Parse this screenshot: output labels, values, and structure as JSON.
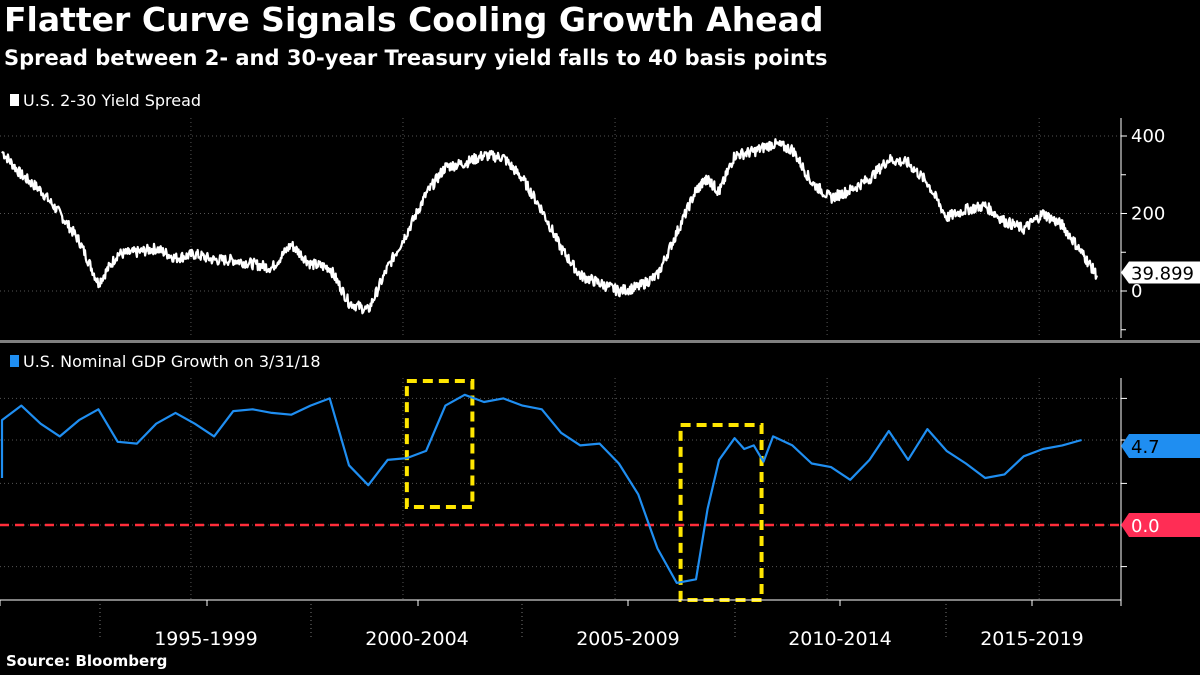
{
  "header": {
    "title": "Flatter Curve Signals Cooling Growth Ahead",
    "subtitle": "Spread between 2- and 30-year Treasury yield falls to 40 basis points"
  },
  "footer": {
    "source": "Source: Bloomberg"
  },
  "colors": {
    "background": "#000000",
    "spread_line": "#ffffff",
    "gdp_line": "#1f8ef1",
    "zero_line": "#ff2d3a",
    "highlight_box": "#ffe600",
    "gdp_tag": "#1f8ef1",
    "zero_tag": "#ff2d55"
  },
  "chart_data": [
    {
      "type": "line",
      "legend": "U.S. 2-30 Yield Spread",
      "x_unit": "year",
      "y_axis": {
        "ticks": [
          400,
          200,
          0
        ],
        "tick_labels": [
          "400",
          "200",
          "0"
        ],
        "ylim": [
          -120,
          440
        ],
        "side": "right"
      },
      "last_value_label": "39.899",
      "series": [
        {
          "name": "U.S. 2-30 Yield Spread",
          "x": [
            1990.0,
            1990.5,
            1991.0,
            1991.5,
            1992.0,
            1992.5,
            1993.0,
            1993.5,
            1994.0,
            1994.5,
            1995.0,
            1995.5,
            1996.0,
            1996.5,
            1997.0,
            1997.5,
            1998.0,
            1998.5,
            1999.0,
            1999.5,
            2000.0,
            2000.5,
            2001.0,
            2001.5,
            2002.0,
            2002.5,
            2003.0,
            2003.5,
            2004.0,
            2004.5,
            2005.0,
            2005.5,
            2006.0,
            2006.5,
            2007.0,
            2007.5,
            2008.0,
            2008.3,
            2008.6,
            2009.0,
            2009.5,
            2010.0,
            2010.5,
            2011.0,
            2011.5,
            2012.0,
            2012.5,
            2013.0,
            2013.5,
            2014.0,
            2014.5,
            2015.0,
            2015.5,
            2016.0,
            2016.5,
            2017.0,
            2017.5,
            2018.0,
            2018.4
          ],
          "y": [
            360,
            300,
            260,
            200,
            130,
            20,
            95,
            100,
            110,
            85,
            95,
            80,
            80,
            70,
            60,
            120,
            70,
            60,
            -30,
            -50,
            60,
            150,
            250,
            320,
            330,
            350,
            345,
            290,
            210,
            110,
            40,
            20,
            0,
            10,
            40,
            150,
            260,
            290,
            255,
            350,
            360,
            380,
            365,
            280,
            240,
            260,
            290,
            340,
            330,
            280,
            190,
            210,
            220,
            180,
            160,
            200,
            170,
            100,
            40
          ]
        }
      ]
    },
    {
      "type": "line",
      "legend": "U.S. Nominal GDP Growth on 3/31/18",
      "x_unit": "year",
      "last_value_label": "4.7",
      "reference_line": {
        "value": 0.0,
        "label": "0.0",
        "style": "dashed"
      },
      "highlights": [
        {
          "from": 2000.5,
          "to": 2002.2
        },
        {
          "from": 2007.6,
          "to": 2009.7
        }
      ],
      "series": [
        {
          "name": "U.S. Nominal GDP Growth",
          "x": [
            1990.0,
            1990.5,
            1991.0,
            1991.5,
            1992.0,
            1992.5,
            1993.0,
            1993.5,
            1994.0,
            1994.5,
            1995.0,
            1995.5,
            1996.0,
            1996.5,
            1997.0,
            1997.5,
            1998.0,
            1998.5,
            1999.0,
            1999.5,
            2000.0,
            2000.5,
            2001.0,
            2001.5,
            2002.0,
            2002.5,
            2003.0,
            2003.5,
            2004.0,
            2004.5,
            2005.0,
            2005.5,
            2006.0,
            2006.5,
            2007.0,
            2007.5,
            2008.0,
            2008.3,
            2008.6,
            2009.0,
            2009.25,
            2009.5,
            2009.75,
            2010.0,
            2010.5,
            2011.0,
            2011.5,
            2012.0,
            2012.5,
            2013.0,
            2013.5,
            2014.0,
            2014.5,
            2015.0,
            2015.5,
            2016.0,
            2016.5,
            2017.0,
            2017.5,
            2018.0
          ],
          "y": [
            5.8,
            6.6,
            5.6,
            4.9,
            5.8,
            6.4,
            4.6,
            4.5,
            5.6,
            6.2,
            5.6,
            4.9,
            6.3,
            6.4,
            6.2,
            6.1,
            6.6,
            7.0,
            3.3,
            2.2,
            3.6,
            3.7,
            4.1,
            6.6,
            7.2,
            6.8,
            7.0,
            6.6,
            6.4,
            5.1,
            4.4,
            4.5,
            3.4,
            1.7,
            -1.3,
            -3.2,
            -3.0,
            0.9,
            3.6,
            4.8,
            4.2,
            4.4,
            3.5,
            4.9,
            4.4,
            3.4,
            3.2,
            2.5,
            3.6,
            5.2,
            3.6,
            5.3,
            4.1,
            3.4,
            2.6,
            2.8,
            3.8,
            4.2,
            4.4,
            4.7
          ]
        }
      ]
    }
  ],
  "x_axis": {
    "tick_labels": [
      "1995-1999",
      "2000-2004",
      "2005-2009",
      "2010-2014",
      "2015-2019"
    ]
  }
}
